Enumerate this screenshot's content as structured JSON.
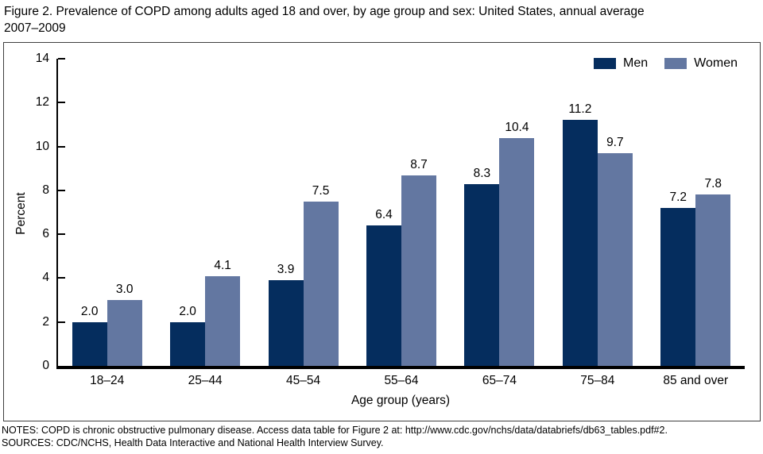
{
  "figure": {
    "title_line1": "Figure 2. Prevalence of COPD among adults aged 18 and over, by age group and sex: United States, annual average",
    "title_line2": "2007–2009"
  },
  "chart_data": {
    "type": "bar",
    "title": "Figure 2. Prevalence of COPD among adults aged 18 and over, by age group and sex: United States, annual average 2007–2009",
    "categories": [
      "18–24",
      "25–44",
      "45–54",
      "55–64",
      "65–74",
      "75–84",
      "85 and over"
    ],
    "series": [
      {
        "name": "Men",
        "color": "#052d5e",
        "values": [
          2.0,
          2.0,
          3.9,
          6.4,
          8.3,
          11.2,
          7.2
        ]
      },
      {
        "name": "Women",
        "color": "#6377a1",
        "values": [
          3.0,
          4.1,
          7.5,
          8.7,
          10.4,
          9.7,
          7.8
        ]
      }
    ],
    "xlabel": "Age group (years)",
    "ylabel": "Percent",
    "ylim": [
      0,
      14
    ],
    "yticks": [
      0,
      2,
      4,
      6,
      8,
      10,
      12,
      14
    ],
    "grid": false,
    "value_labels": true,
    "value_label_decimals": 1,
    "legend_position": "top-right"
  },
  "notes": {
    "line1": "NOTES: COPD is chronic obstructive pulmonary disease. Access data table for Figure 2 at: http://www.cdc.gov/nchs/data/databriefs/db63_tables.pdf#2.",
    "line2": "SOURCES: CDC/NCHS, Health Data Interactive and National Health Interview Survey."
  }
}
